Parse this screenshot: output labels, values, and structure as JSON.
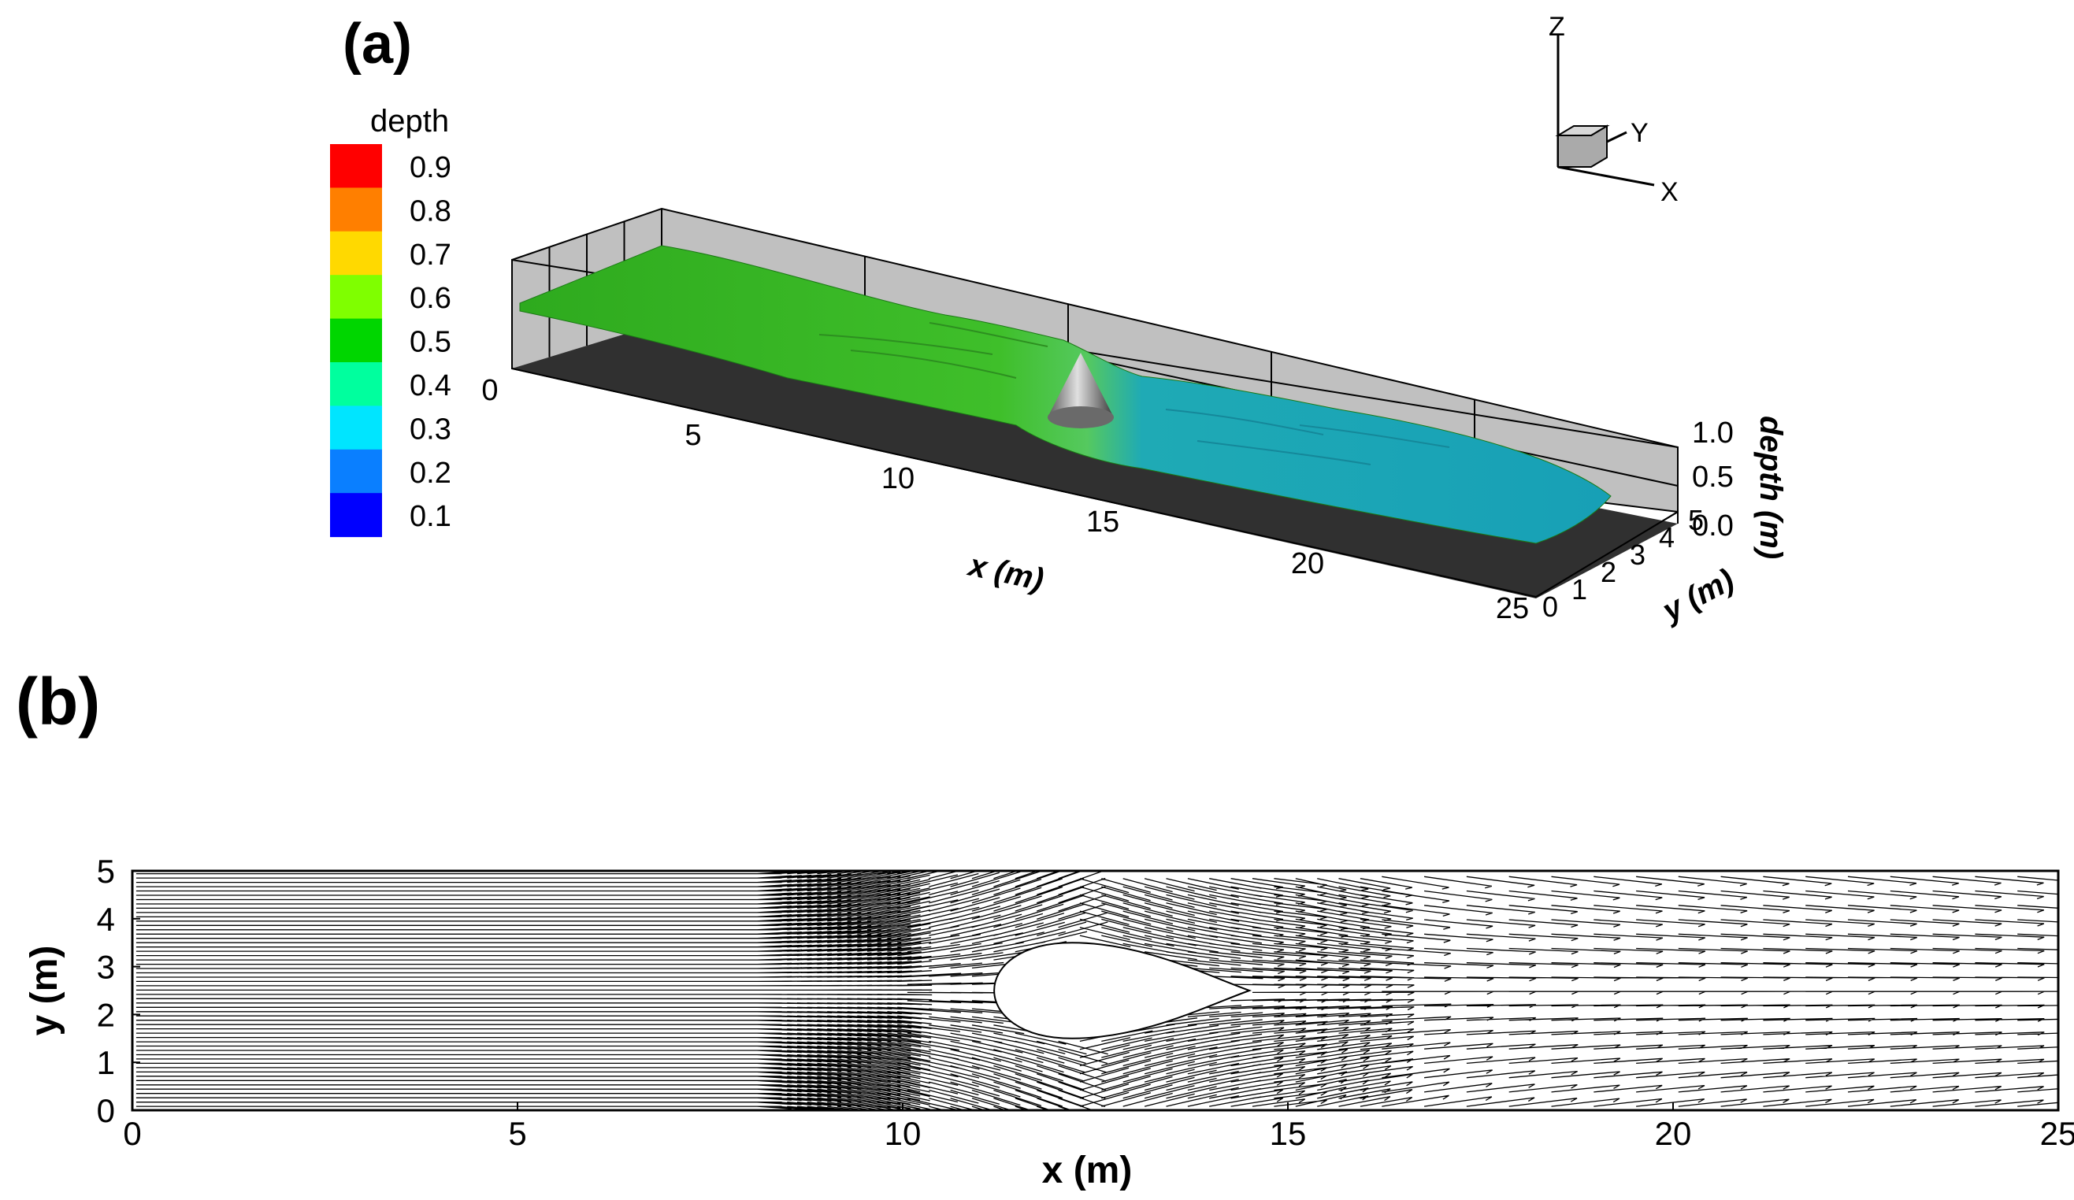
{
  "chart_data": [
    {
      "panel": "(a)",
      "type": "surface-3d",
      "legend": {
        "title": "depth",
        "levels": [
          "0.9",
          "0.8",
          "0.7",
          "0.6",
          "0.5",
          "0.4",
          "0.3",
          "0.2",
          "0.1"
        ],
        "colors": [
          "#ff0000",
          "#ff7f00",
          "#ffd900",
          "#7fff00",
          "#00d600",
          "#00ff9e",
          "#00e5ff",
          "#0a7fff",
          "#0000ff"
        ]
      },
      "x_ticks": [
        "0",
        "5",
        "10",
        "15",
        "20",
        "25"
      ],
      "y_ticks": [
        "0",
        "1",
        "2",
        "3",
        "4",
        "5"
      ],
      "z_ticks": [
        "1.0",
        "0.5",
        "0.0"
      ],
      "xlabel": "x (m)",
      "ylabel": "y (m)",
      "zlabel": "depth (m)",
      "triad": {
        "z": "Z",
        "y": "Y",
        "x": "X"
      },
      "xlim": [
        0,
        25
      ],
      "ylim": [
        0,
        5
      ],
      "zlim": [
        0,
        1
      ],
      "surface": {
        "x": [
          0,
          2.5,
          5,
          7.5,
          10,
          12.5,
          15,
          17.5,
          20,
          22.5,
          25
        ],
        "depth": [
          0.6,
          0.58,
          0.55,
          0.52,
          0.5,
          0.42,
          0.3,
          0.28,
          0.27,
          0.26,
          0.25
        ],
        "upstream_color": "#22b81c",
        "downstream_color": "#1aa6b8"
      },
      "obstacle": {
        "shape": "cone",
        "x": 13,
        "y": 2.5
      }
    },
    {
      "panel": "(b)",
      "type": "vector-field",
      "xlabel": "x (m)",
      "ylabel": "y (m)",
      "xlim": [
        0,
        25
      ],
      "ylim": [
        0,
        5
      ],
      "x_ticks": [
        "0",
        "5",
        "10",
        "15",
        "20",
        "25"
      ],
      "y_ticks": [
        "0",
        "1",
        "2",
        "3",
        "4",
        "5"
      ],
      "obstacle": {
        "shape": "drop",
        "x_center": 12.2,
        "y_center": 2.5,
        "radius": 1.0,
        "wake_tip_x": 14.5
      }
    }
  ]
}
